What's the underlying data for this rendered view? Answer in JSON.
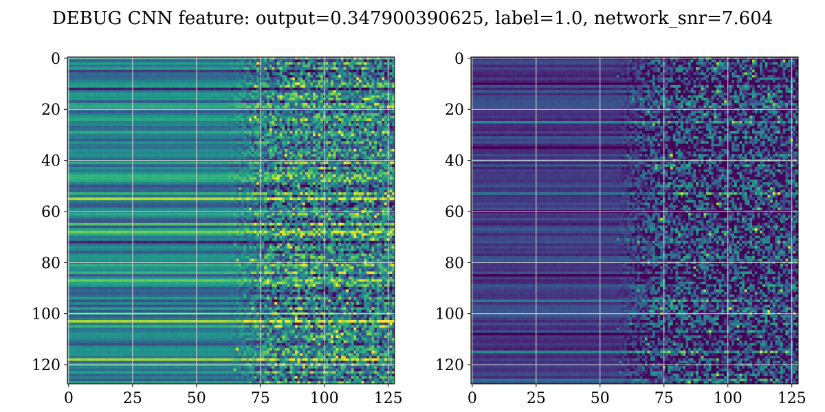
{
  "figure": {
    "title": "DEBUG CNN feature: output=0.347900390625, label=1.0, network_snr=7.604"
  },
  "colormap": {
    "name": "viridis",
    "stops": [
      "#440154",
      "#482878",
      "#3e4989",
      "#31688e",
      "#26828e",
      "#1f9e89",
      "#35b779",
      "#6ece58",
      "#b5de2b",
      "#fde725"
    ]
  },
  "chart_data": [
    {
      "type": "heatmap",
      "name": "",
      "rows": 128,
      "cols": 128,
      "xlim": [
        -0.5,
        127.5
      ],
      "ylim": [
        127.5,
        -0.5
      ],
      "xticks": [
        0,
        25,
        50,
        75,
        100,
        125
      ],
      "yticks": [
        0,
        20,
        40,
        60,
        80,
        100,
        120
      ],
      "grid": true,
      "description_of_pattern": "",
      "feature_model": {
        "row_base_mean": 0.45,
        "row_base_spread": 0.2,
        "noise_onset_col": 75,
        "noise_amplitude": 0.35,
        "bright_rows": [
          45,
          55,
          61,
          65,
          68,
          87,
          100,
          103,
          118
        ],
        "dark_rows": [
          5,
          12,
          28,
          50,
          72,
          92,
          112,
          125
        ]
      }
    },
    {
      "type": "heatmap",
      "name": "",
      "rows": 128,
      "cols": 128,
      "xlim": [
        -0.5,
        127.5
      ],
      "ylim": [
        127.5,
        -0.5
      ],
      "xticks": [
        0,
        25,
        50,
        75,
        100,
        125
      ],
      "yticks": [
        0,
        20,
        40,
        60,
        80,
        100,
        120
      ],
      "grid": true,
      "description_of_pattern": "",
      "feature_model": {
        "row_base_mean": 0.18,
        "row_base_spread": 0.1,
        "noise_onset_col": 70,
        "noise_amplitude": 0.4,
        "bright_rows": [
          25,
          40,
          53,
          95,
          115,
          126
        ],
        "dark_rows": [
          10,
          35,
          60,
          85,
          108
        ]
      }
    }
  ]
}
